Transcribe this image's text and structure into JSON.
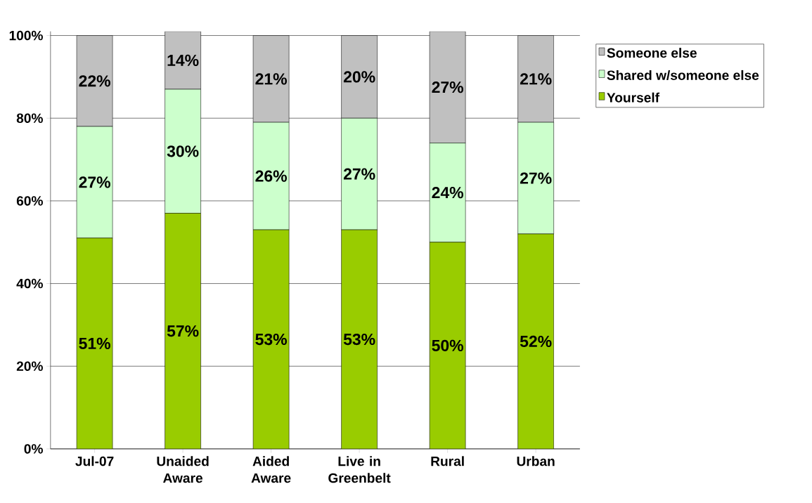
{
  "chart_data": {
    "type": "bar",
    "stacked": true,
    "categories": [
      "Jul-07",
      "Unaided Aware",
      "Aided Aware",
      "Live in Greenbelt",
      "Rural",
      "Urban"
    ],
    "series": [
      {
        "name": "Yourself",
        "color": "#99cc00",
        "values": [
          51,
          57,
          53,
          53,
          50,
          52
        ],
        "value_labels": [
          "51%",
          "57%",
          "53%",
          "53%",
          "50%",
          "52%"
        ]
      },
      {
        "name": "Shared w/someone else",
        "color": "#ccffcc",
        "values": [
          27,
          30,
          26,
          27,
          24,
          27
        ],
        "value_labels": [
          "27%",
          "30%",
          "26%",
          "27%",
          "24%",
          "27%"
        ]
      },
      {
        "name": "Someone else",
        "color": "#c0c0c0",
        "values": [
          22,
          14,
          21,
          20,
          27,
          21
        ],
        "value_labels": [
          "22%",
          "14%",
          "21%",
          "20%",
          "27%",
          "21%"
        ]
      }
    ],
    "ylim": [
      0,
      101
    ],
    "yticks": [
      {
        "value": 0,
        "label": "0%"
      },
      {
        "value": 20,
        "label": "20%"
      },
      {
        "value": 40,
        "label": "40%"
      },
      {
        "value": 60,
        "label": "60%"
      },
      {
        "value": 80,
        "label": "80%"
      },
      {
        "value": 100,
        "label": "100%"
      }
    ],
    "grid": "y",
    "legend": "right"
  }
}
